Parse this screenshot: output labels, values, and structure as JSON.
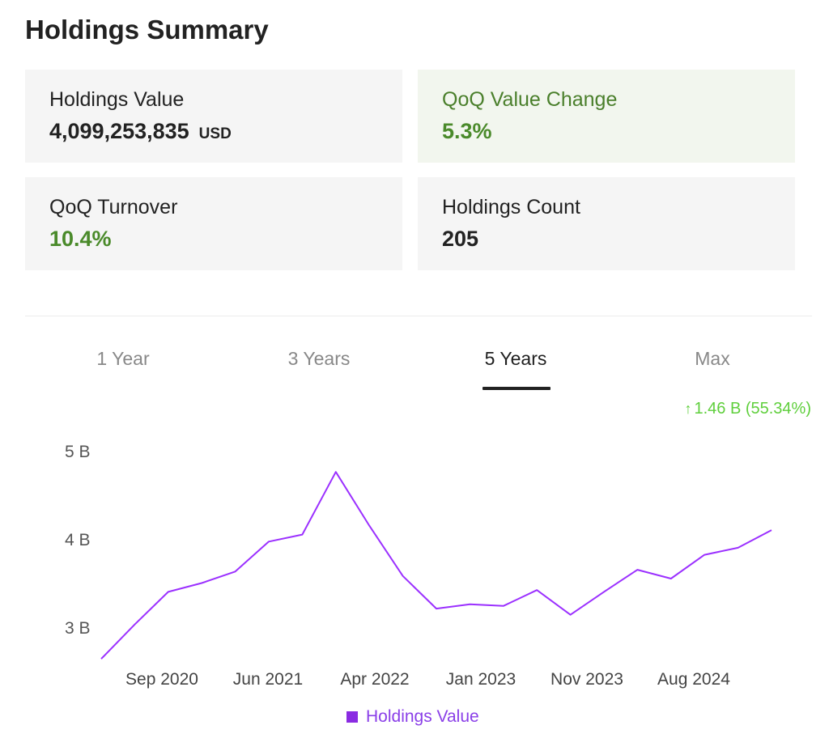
{
  "page": {
    "title": "Holdings Summary"
  },
  "cards": {
    "holdings_value": {
      "label": "Holdings Value",
      "value": "4,099,253,835",
      "unit": "USD"
    },
    "qoq_value_change": {
      "label": "QoQ Value Change",
      "value": "5.3%"
    },
    "qoq_turnover": {
      "label": "QoQ Turnover",
      "value": "10.4%"
    },
    "holdings_count": {
      "label": "Holdings Count",
      "value": "205"
    }
  },
  "tabs": [
    {
      "label": "1 Year",
      "active": false
    },
    {
      "label": "3 Years",
      "active": false
    },
    {
      "label": "5 Years",
      "active": true
    },
    {
      "label": "Max",
      "active": false
    }
  ],
  "change": {
    "arrow": "↑",
    "text": "1.46 B (55.34%)"
  },
  "colors": {
    "accent_green": "#4a8a2a",
    "positive_change": "#5fcf3c",
    "series": "#9b30ff"
  },
  "chart_data": {
    "type": "line",
    "y_ticks": [
      "5 B",
      "4 B",
      "3 B"
    ],
    "x_ticks": [
      "Sep 2020",
      "Jun 2021",
      "Apr 2022",
      "Jan 2023",
      "Nov 2023",
      "Aug 2024"
    ],
    "ylim": [
      2.6,
      5.15
    ],
    "series": [
      {
        "name": "Holdings Value",
        "values": [
          2.64,
          3.03,
          3.4,
          3.5,
          3.63,
          3.97,
          4.05,
          4.76,
          4.15,
          3.58,
          3.21,
          3.26,
          3.24,
          3.42,
          3.14,
          3.4,
          3.65,
          3.55,
          3.82,
          3.9,
          4.1
        ]
      }
    ]
  }
}
